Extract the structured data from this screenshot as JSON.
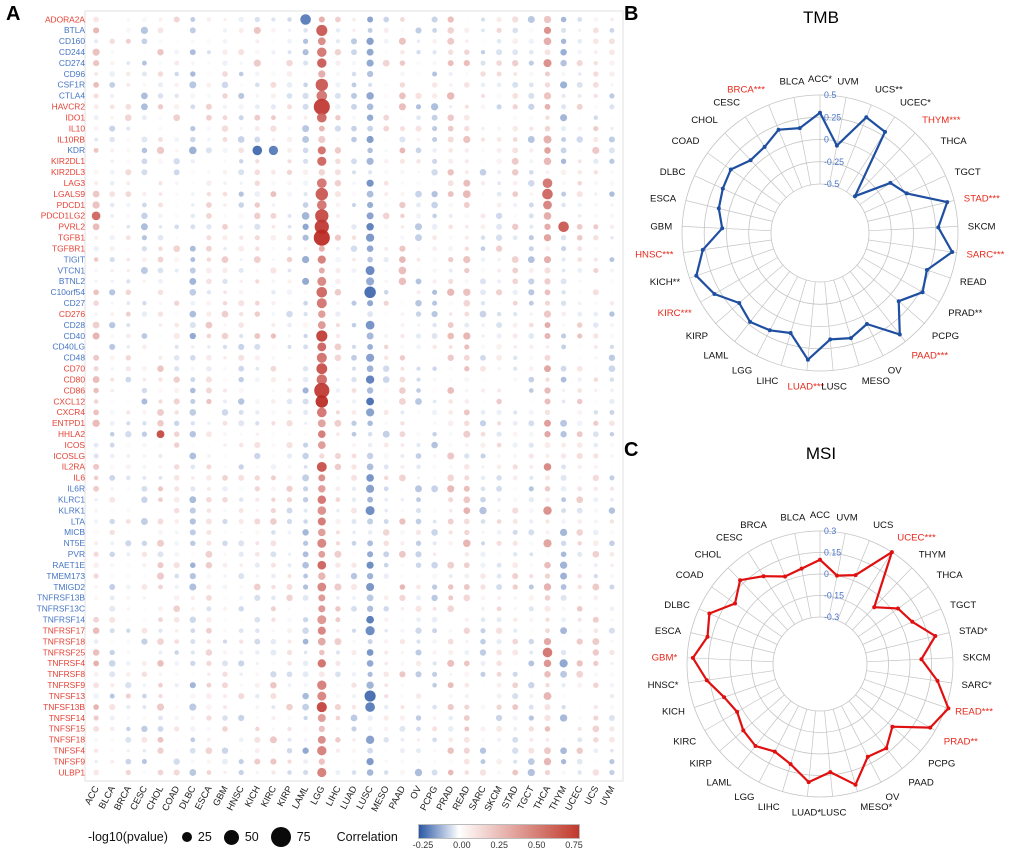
{
  "panels": {
    "a": "A",
    "b": "B",
    "c": "C"
  },
  "chart_data": [
    {
      "type": "heatmap",
      "subtype": "bubble-matrix",
      "panel": "A",
      "description": "Dot matrix of correlation between immune checkpoint genes (rows) and TCGA cancer types (columns); dot color = correlation, dot size = -log10(pvalue)",
      "gene_label_colors": {
        "r": "#e64135",
        "b": "#4575c4"
      },
      "genes": [
        {
          "n": "ADORA2A",
          "c": "r"
        },
        {
          "n": "BTLA",
          "c": "b"
        },
        {
          "n": "CD160",
          "c": "b"
        },
        {
          "n": "CD244",
          "c": "b"
        },
        {
          "n": "CD274",
          "c": "b"
        },
        {
          "n": "CD96",
          "c": "b"
        },
        {
          "n": "CSF1R",
          "c": "b"
        },
        {
          "n": "CTLA4",
          "c": "b"
        },
        {
          "n": "HAVCR2",
          "c": "r"
        },
        {
          "n": "IDO1",
          "c": "r"
        },
        {
          "n": "IL10",
          "c": "r"
        },
        {
          "n": "IL10RB",
          "c": "r"
        },
        {
          "n": "KDR",
          "c": "b"
        },
        {
          "n": "KIR2DL1",
          "c": "r"
        },
        {
          "n": "KIR2DL3",
          "c": "r"
        },
        {
          "n": "LAG3",
          "c": "r"
        },
        {
          "n": "LGALS9",
          "c": "r"
        },
        {
          "n": "PDCD1",
          "c": "r"
        },
        {
          "n": "PDCD1LG2",
          "c": "r"
        },
        {
          "n": "PVRL2",
          "c": "r"
        },
        {
          "n": "TGFB1",
          "c": "r"
        },
        {
          "n": "TGFBR1",
          "c": "r"
        },
        {
          "n": "TIGIT",
          "c": "b"
        },
        {
          "n": "VTCN1",
          "c": "b"
        },
        {
          "n": "BTNL2",
          "c": "b"
        },
        {
          "n": "C10orf54",
          "c": "b"
        },
        {
          "n": "CD27",
          "c": "b"
        },
        {
          "n": "CD276",
          "c": "r"
        },
        {
          "n": "CD28",
          "c": "b"
        },
        {
          "n": "CD40",
          "c": "b"
        },
        {
          "n": "CD40LG",
          "c": "b"
        },
        {
          "n": "CD48",
          "c": "b"
        },
        {
          "n": "CD70",
          "c": "r"
        },
        {
          "n": "CD80",
          "c": "r"
        },
        {
          "n": "CD86",
          "c": "r"
        },
        {
          "n": "CXCL12",
          "c": "r"
        },
        {
          "n": "CXCR4",
          "c": "r"
        },
        {
          "n": "ENTPD1",
          "c": "r"
        },
        {
          "n": "HHLA2",
          "c": "r"
        },
        {
          "n": "ICOS",
          "c": "r"
        },
        {
          "n": "ICOSLG",
          "c": "r"
        },
        {
          "n": "IL2RA",
          "c": "r"
        },
        {
          "n": "IL6",
          "c": "r"
        },
        {
          "n": "IL6R",
          "c": "b"
        },
        {
          "n": "KLRC1",
          "c": "b"
        },
        {
          "n": "KLRK1",
          "c": "b"
        },
        {
          "n": "LTA",
          "c": "b"
        },
        {
          "n": "MICB",
          "c": "b"
        },
        {
          "n": "NT5E",
          "c": "b"
        },
        {
          "n": "PVR",
          "c": "b"
        },
        {
          "n": "RAET1E",
          "c": "b"
        },
        {
          "n": "TMEM173",
          "c": "b"
        },
        {
          "n": "TMIGD2",
          "c": "b"
        },
        {
          "n": "TNFRSF13B",
          "c": "b"
        },
        {
          "n": "TNFRSF13C",
          "c": "b"
        },
        {
          "n": "TNFRSF14",
          "c": "b"
        },
        {
          "n": "TNFRSF17",
          "c": "r"
        },
        {
          "n": "TNFRSF18",
          "c": "r"
        },
        {
          "n": "TNFRSF25",
          "c": "r"
        },
        {
          "n": "TNFRSF4",
          "c": "r"
        },
        {
          "n": "TNFRSF8",
          "c": "r"
        },
        {
          "n": "TNFRSF9",
          "c": "r"
        },
        {
          "n": "TNFSF13",
          "c": "r"
        },
        {
          "n": "TNFSF13B",
          "c": "r"
        },
        {
          "n": "TNFSF14",
          "c": "r"
        },
        {
          "n": "TNFSF15",
          "c": "r"
        },
        {
          "n": "TNFSF18",
          "c": "r"
        },
        {
          "n": "TNFSF4",
          "c": "r"
        },
        {
          "n": "TNFSF9",
          "c": "r"
        },
        {
          "n": "ULBP1",
          "c": "r"
        }
      ],
      "cancers": [
        "ACC",
        "BLCA",
        "BRCA",
        "CESC",
        "CHOL",
        "COAD",
        "DLBC",
        "ESCA",
        "GBM",
        "HNSC",
        "KICH",
        "KIRC",
        "KIRP",
        "LAML",
        "LGG",
        "LIHC",
        "LUAD",
        "LUSC",
        "MESO",
        "PAAD",
        "OV",
        "PCPG",
        "PRAD",
        "READ",
        "SARC",
        "SKCM",
        "STAD",
        "TGCT",
        "THCA",
        "THYM",
        "UCEC",
        "UCS",
        "UVM"
      ],
      "column_bias": {
        "ACC": 0.1,
        "BLCA": -0.05,
        "BRCA": 0.02,
        "CESC": -0.06,
        "CHOL": 0.06,
        "COAD": 0.02,
        "DLBC": -0.1,
        "ESCA": 0.05,
        "GBM": 0.02,
        "HNSC": -0.04,
        "KICH": 0.04,
        "KIRC": 0.06,
        "KIRP": 0.02,
        "LAML": -0.14,
        "LGG": 0.42,
        "LIHC": 0.06,
        "LUAD": -0.04,
        "LUSC": -0.28,
        "MESO": 0.0,
        "PAAD": 0.1,
        "OV": -0.05,
        "PCPG": -0.08,
        "PRAD": 0.1,
        "READ": 0.1,
        "SARC": -0.04,
        "SKCM": 0.02,
        "STAD": 0.05,
        "TGCT": -0.05,
        "THCA": 0.22,
        "THYM": -0.12,
        "UCEC": 0.05,
        "UCS": 0.04,
        "UVM": -0.06
      },
      "hotspots": [
        [
          "ADORA2A",
          "LAML",
          -0.45,
          45
        ],
        [
          "CSF1R",
          "LGG",
          0.6,
          55
        ],
        [
          "CTLA4",
          "LGG",
          0.5,
          45
        ],
        [
          "HAVCR2",
          "LGG",
          0.7,
          75
        ],
        [
          "IDO1",
          "LGG",
          0.55,
          40
        ],
        [
          "KDR",
          "KICH",
          -0.5,
          40
        ],
        [
          "KDR",
          "KIRC",
          -0.45,
          38
        ],
        [
          "LAG3",
          "LGG",
          0.5,
          40
        ],
        [
          "LGALS9",
          "LGG",
          0.6,
          55
        ],
        [
          "PDCD1",
          "LGG",
          0.5,
          40
        ],
        [
          "PDCD1LG2",
          "LGG",
          0.65,
          60
        ],
        [
          "PDCD1LG2",
          "ACC",
          0.55,
          35
        ],
        [
          "PVRL2",
          "LGG",
          0.7,
          65
        ],
        [
          "PVRL2",
          "THYM",
          0.6,
          45
        ],
        [
          "TGFB1",
          "LGG",
          0.75,
          75
        ],
        [
          "CD27",
          "LGG",
          0.5,
          42
        ],
        [
          "CD86",
          "LGG",
          0.7,
          70
        ],
        [
          "CXCR4",
          "LGG",
          0.5,
          40
        ],
        [
          "C10orf54",
          "LGG",
          0.55,
          45
        ],
        [
          "C10orf54",
          "LUSC",
          -0.5,
          50
        ],
        [
          "HHLA2",
          "CHOL",
          0.65,
          30
        ],
        [
          "LGALS9",
          "THCA",
          0.55,
          45
        ],
        [
          "TNFRSF25",
          "THCA",
          0.5,
          40
        ],
        [
          "TNFSF13",
          "LUSC",
          -0.5,
          48
        ],
        [
          "TNFSF13B",
          "LUSC",
          -0.45,
          40
        ],
        [
          "LAG3",
          "THCA",
          0.5,
          40
        ],
        [
          "PDCD1",
          "THCA",
          0.45,
          35
        ]
      ],
      "seed": 42,
      "size_legend": {
        "title": "-log10(pvalue)",
        "values": [
          25,
          50,
          75
        ]
      },
      "color_legend": {
        "title": "Correlation",
        "ticks": [
          "-0.25",
          "0.00",
          "0.25",
          "0.50",
          "0.75"
        ],
        "min": -0.25,
        "max": 0.75,
        "neg_color": "#2a57a6",
        "pos_color": "#c0392b"
      }
    },
    {
      "type": "line",
      "subtype": "radar",
      "panel": "B",
      "title": "TMB",
      "color": "#1f4fa0",
      "tick_color": "#4a74c8",
      "sig_label_color": "#e8291c",
      "vmin": -0.5,
      "vmax": 0.5,
      "ticks": [
        0.5,
        0.25,
        0,
        -0.25,
        -0.5
      ],
      "categories": [
        {
          "label": "ACC*",
          "value": 0.3,
          "sig": false
        },
        {
          "label": "BLCA",
          "value": 0.15,
          "sig": false
        },
        {
          "label": "BRCA***",
          "value": 0.2,
          "sig": true
        },
        {
          "label": "CESC",
          "value": 0.1,
          "sig": false
        },
        {
          "label": "CHOL",
          "value": 0.08,
          "sig": false
        },
        {
          "label": "COAD",
          "value": 0.18,
          "sig": false
        },
        {
          "label": "DLBC",
          "value": 0.15,
          "sig": false
        },
        {
          "label": "ESCA",
          "value": 0.12,
          "sig": false
        },
        {
          "label": "GBM",
          "value": 0.05,
          "sig": false
        },
        {
          "label": "HNSC***",
          "value": 0.28,
          "sig": true
        },
        {
          "label": "KICH**",
          "value": 0.42,
          "sig": false
        },
        {
          "label": "KIRC***",
          "value": 0.32,
          "sig": true
        },
        {
          "label": "KIRP",
          "value": 0.15,
          "sig": false
        },
        {
          "label": "LAML",
          "value": 0.22,
          "sig": false
        },
        {
          "label": "LGG",
          "value": 0.18,
          "sig": false
        },
        {
          "label": "LIHC",
          "value": 0.12,
          "sig": false
        },
        {
          "label": "LUAD***",
          "value": 0.38,
          "sig": true
        },
        {
          "label": "LUSC",
          "value": 0.15,
          "sig": false
        },
        {
          "label": "MESO",
          "value": 0.18,
          "sig": false
        },
        {
          "label": "OV",
          "value": 0.1,
          "sig": false
        },
        {
          "label": "PAAD***",
          "value": 0.4,
          "sig": true
        },
        {
          "label": "PCPG",
          "value": 0.12,
          "sig": false
        },
        {
          "label": "PRAD**",
          "value": 0.28,
          "sig": false
        },
        {
          "label": "READ",
          "value": 0.22,
          "sig": false
        },
        {
          "label": "SARC***",
          "value": 0.45,
          "sig": true
        },
        {
          "label": "SKCM",
          "value": 0.28,
          "sig": false
        },
        {
          "label": "STAD***",
          "value": 0.42,
          "sig": true
        },
        {
          "label": "TGCT",
          "value": 0.02,
          "sig": false
        },
        {
          "label": "THCA",
          "value": -0.08,
          "sig": false
        },
        {
          "label": "THYM***",
          "value": -0.48,
          "sig": true
        },
        {
          "label": "UCEC*",
          "value": 0.3,
          "sig": false
        },
        {
          "label": "UCS**",
          "value": 0.35,
          "sig": false
        },
        {
          "label": "UVM",
          "value": -0.05,
          "sig": false
        }
      ]
    },
    {
      "type": "line",
      "subtype": "radar",
      "panel": "C",
      "title": "MSI",
      "color": "#e01010",
      "tick_color": "#4a74c8",
      "sig_label_color": "#e8291c",
      "vmin": -0.3,
      "vmax": 0.3,
      "ticks": [
        0.3,
        0.15,
        0,
        -0.15,
        -0.3
      ],
      "categories": [
        {
          "label": "ACC",
          "value": 0.1,
          "sig": false
        },
        {
          "label": "BLCA",
          "value": 0.05,
          "sig": false
        },
        {
          "label": "BRCA",
          "value": 0.03,
          "sig": false
        },
        {
          "label": "CESC",
          "value": 0.1,
          "sig": false
        },
        {
          "label": "CHOL",
          "value": 0.18,
          "sig": false
        },
        {
          "label": "COAD",
          "value": 0.1,
          "sig": false
        },
        {
          "label": "DLBC",
          "value": 0.22,
          "sig": false
        },
        {
          "label": "ESCA",
          "value": 0.18,
          "sig": false
        },
        {
          "label": "GBM*",
          "value": 0.26,
          "sig": true
        },
        {
          "label": "HNSC*",
          "value": 0.17,
          "sig": false
        },
        {
          "label": "KICH",
          "value": 0.08,
          "sig": false
        },
        {
          "label": "KIRC",
          "value": 0.04,
          "sig": false
        },
        {
          "label": "KIRP",
          "value": 0.08,
          "sig": false
        },
        {
          "label": "LAML",
          "value": 0.1,
          "sig": false
        },
        {
          "label": "LGG",
          "value": 0.06,
          "sig": false
        },
        {
          "label": "LIHC",
          "value": 0.1,
          "sig": false
        },
        {
          "label": "LUAD*",
          "value": 0.2,
          "sig": false
        },
        {
          "label": "LUSC",
          "value": 0.13,
          "sig": false
        },
        {
          "label": "MESO*",
          "value": 0.25,
          "sig": false
        },
        {
          "label": "OV",
          "value": 0.1,
          "sig": false
        },
        {
          "label": "PAAD",
          "value": 0.12,
          "sig": false
        },
        {
          "label": "PCPG",
          "value": 0.04,
          "sig": false
        },
        {
          "label": "PRAD**",
          "value": 0.26,
          "sig": true
        },
        {
          "label": "READ***",
          "value": 0.32,
          "sig": true
        },
        {
          "label": "SARC*",
          "value": 0.2,
          "sig": false
        },
        {
          "label": "SKCM",
          "value": 0.08,
          "sig": false
        },
        {
          "label": "STAD*",
          "value": 0.2,
          "sig": false
        },
        {
          "label": "TGCT",
          "value": 0.08,
          "sig": false
        },
        {
          "label": "THCA",
          "value": 0.04,
          "sig": false
        },
        {
          "label": "THYM",
          "value": -0.08,
          "sig": false
        },
        {
          "label": "UCEC***",
          "value": 0.3,
          "sig": true
        },
        {
          "label": "UCS",
          "value": 0.04,
          "sig": false
        },
        {
          "label": "UVM",
          "value": 0.0,
          "sig": false
        }
      ]
    }
  ]
}
